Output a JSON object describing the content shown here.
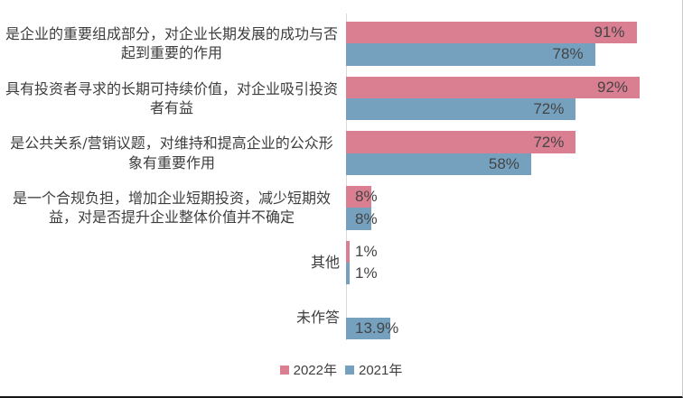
{
  "chart_data": {
    "type": "bar",
    "orientation": "horizontal",
    "title": "",
    "xlabel": "",
    "ylabel": "",
    "xlim": [
      0,
      100
    ],
    "value_suffix": "%",
    "grid": false,
    "legend_position": "bottom",
    "axis_line_color": "#d9d9d9",
    "categories": [
      "是企业的重要组成部分，对企业长期发展的成功与否起到重要的作用",
      "具有投资者寻求的长期可持续价值，对企业吸引投资者有益",
      "是公共关系/营销议题，对维持和提高企业的公众形象有重要作用",
      "是一个合规负担，增加企业短期投资，减少短期效益，对是否提升企业整体价值并不确定",
      "其他",
      "未作答"
    ],
    "series": [
      {
        "name": "2022年",
        "color": "#da7e91",
        "values": [
          91,
          92,
          72,
          8,
          1,
          null
        ],
        "labels": [
          "91%",
          "92%",
          "72%",
          "8%",
          "1%",
          ""
        ]
      },
      {
        "name": "2021年",
        "color": "#75a1bf",
        "values": [
          78,
          72,
          58,
          8,
          1,
          13.9
        ],
        "labels": [
          "78%",
          "72%",
          "58%",
          "8%",
          "1%",
          "13.9%"
        ]
      }
    ]
  },
  "legend": {
    "items": [
      {
        "label": "2022年",
        "color": "#da7e91"
      },
      {
        "label": "2021年",
        "color": "#75a1bf"
      }
    ]
  },
  "style": {
    "value_text_color": "#444444",
    "category_text_color": "#3d3d3d",
    "axis_color": "#d9d9d9"
  }
}
